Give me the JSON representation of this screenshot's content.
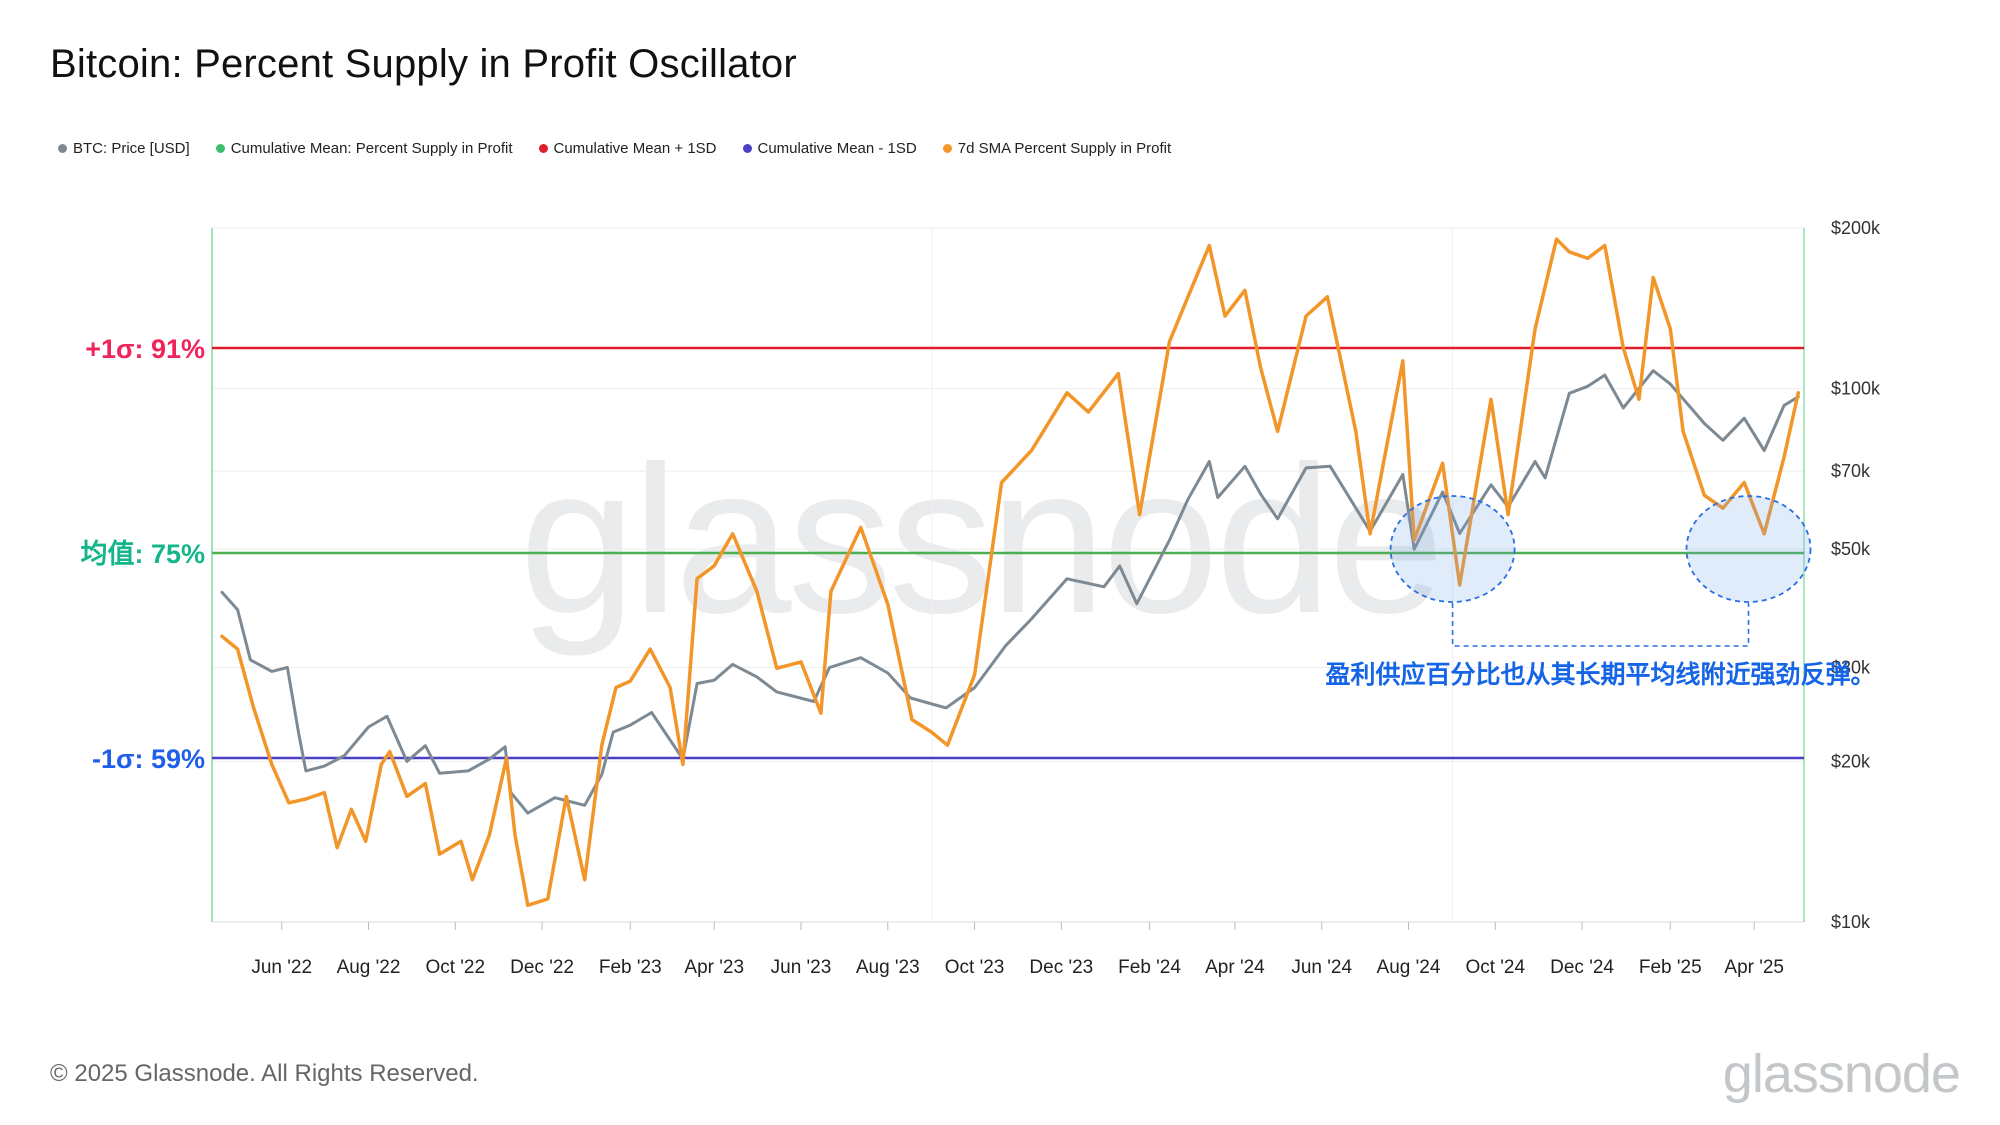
{
  "title": "Bitcoin: Percent Supply in Profit Oscillator",
  "footer": {
    "copyright": "© 2025 Glassnode. All Rights Reserved.",
    "logo": "glassnode"
  },
  "watermark": "glassnode",
  "legend": [
    {
      "label": "BTC: Price [USD]",
      "color": "#7d8a93"
    },
    {
      "label": "Cumulative Mean: Percent Supply in Profit",
      "color": "#3bbf6d"
    },
    {
      "label": "Cumulative Mean + 1SD",
      "color": "#e01e2b"
    },
    {
      "label": "Cumulative Mean - 1SD",
      "color": "#4b3fc4"
    },
    {
      "label": "7d SMA Percent Supply in Profit",
      "color": "#f3962a"
    }
  ],
  "chart_data": {
    "type": "line",
    "x_range": [
      "2022-04",
      "2025-05"
    ],
    "x_ticks": [
      "Jun '22",
      "Aug '22",
      "Oct '22",
      "Dec '22",
      "Feb '23",
      "Apr '23",
      "Jun '23",
      "Aug '23",
      "Oct '23",
      "Dec '23",
      "Feb '24",
      "Apr '24",
      "Jun '24",
      "Aug '24",
      "Oct '24",
      "Dec '24",
      "Feb '25",
      "Apr '25"
    ],
    "right_axis": {
      "scale": "log",
      "ylim": [
        10000,
        200000
      ],
      "ticks": [
        {
          "value": 200000,
          "label": "$200k"
        },
        {
          "value": 100000,
          "label": "$100k"
        },
        {
          "value": 70000,
          "label": "$70k"
        },
        {
          "value": 50000,
          "label": "$50k"
        },
        {
          "value": 30000,
          "label": "$30k"
        },
        {
          "value": 20000,
          "label": "$20k"
        },
        {
          "value": 10000,
          "label": "$10k"
        }
      ]
    },
    "left_axis": {
      "ylim": [
        47,
        100
      ],
      "reference_lines": [
        {
          "value": 91,
          "label": "+1σ: 91%",
          "label_color": "#f0245b",
          "line_color": "#e01e2b"
        },
        {
          "value": 75,
          "label": "均值: 75%",
          "label_color": "#14b58a",
          "line_color": "#4caf50"
        },
        {
          "value": 59,
          "label": "-1σ: 59%",
          "label_color": "#1f5ee8",
          "line_color": "#4b3fc4"
        }
      ]
    },
    "series": [
      {
        "name": "BTC: Price [USD]",
        "color": "#7d8a93",
        "axis": "right",
        "points": [
          {
            "x": "2022-04-20",
            "y": 41500
          },
          {
            "x": "2022-05-01",
            "y": 38500
          },
          {
            "x": "2022-05-10",
            "y": 31000
          },
          {
            "x": "2022-05-25",
            "y": 29500
          },
          {
            "x": "2022-06-05",
            "y": 30000
          },
          {
            "x": "2022-06-13",
            "y": 22500
          },
          {
            "x": "2022-06-18",
            "y": 19200
          },
          {
            "x": "2022-07-01",
            "y": 19600
          },
          {
            "x": "2022-07-15",
            "y": 20500
          },
          {
            "x": "2022-08-01",
            "y": 23200
          },
          {
            "x": "2022-08-14",
            "y": 24300
          },
          {
            "x": "2022-08-28",
            "y": 20000
          },
          {
            "x": "2022-09-10",
            "y": 21400
          },
          {
            "x": "2022-09-20",
            "y": 19000
          },
          {
            "x": "2022-10-10",
            "y": 19200
          },
          {
            "x": "2022-10-25",
            "y": 20200
          },
          {
            "x": "2022-11-05",
            "y": 21300
          },
          {
            "x": "2022-11-09",
            "y": 17500
          },
          {
            "x": "2022-11-21",
            "y": 16000
          },
          {
            "x": "2022-12-10",
            "y": 17100
          },
          {
            "x": "2022-12-31",
            "y": 16550
          },
          {
            "x": "2023-01-12",
            "y": 18900
          },
          {
            "x": "2023-01-20",
            "y": 22700
          },
          {
            "x": "2023-02-01",
            "y": 23400
          },
          {
            "x": "2023-02-16",
            "y": 24700
          },
          {
            "x": "2023-03-10",
            "y": 20200
          },
          {
            "x": "2023-03-20",
            "y": 28000
          },
          {
            "x": "2023-04-01",
            "y": 28400
          },
          {
            "x": "2023-04-14",
            "y": 30400
          },
          {
            "x": "2023-05-01",
            "y": 28800
          },
          {
            "x": "2023-05-15",
            "y": 27000
          },
          {
            "x": "2023-06-10",
            "y": 25900
          },
          {
            "x": "2023-06-21",
            "y": 30000
          },
          {
            "x": "2023-07-13",
            "y": 31300
          },
          {
            "x": "2023-08-01",
            "y": 29300
          },
          {
            "x": "2023-08-17",
            "y": 26300
          },
          {
            "x": "2023-09-11",
            "y": 25200
          },
          {
            "x": "2023-10-01",
            "y": 27500
          },
          {
            "x": "2023-10-23",
            "y": 33000
          },
          {
            "x": "2023-11-10",
            "y": 37000
          },
          {
            "x": "2023-12-05",
            "y": 44000
          },
          {
            "x": "2023-12-31",
            "y": 42500
          },
          {
            "x": "2024-01-11",
            "y": 46500
          },
          {
            "x": "2024-01-23",
            "y": 39500
          },
          {
            "x": "2024-02-15",
            "y": 52000
          },
          {
            "x": "2024-02-28",
            "y": 62000
          },
          {
            "x": "2024-03-14",
            "y": 73000
          },
          {
            "x": "2024-03-20",
            "y": 62500
          },
          {
            "x": "2024-04-08",
            "y": 71500
          },
          {
            "x": "2024-04-19",
            "y": 63500
          },
          {
            "x": "2024-05-01",
            "y": 57000
          },
          {
            "x": "2024-05-21",
            "y": 71000
          },
          {
            "x": "2024-06-07",
            "y": 71500
          },
          {
            "x": "2024-07-05",
            "y": 54000
          },
          {
            "x": "2024-07-28",
            "y": 69000
          },
          {
            "x": "2024-08-05",
            "y": 50000
          },
          {
            "x": "2024-08-25",
            "y": 64000
          },
          {
            "x": "2024-09-06",
            "y": 53500
          },
          {
            "x": "2024-09-28",
            "y": 66000
          },
          {
            "x": "2024-10-10",
            "y": 60000
          },
          {
            "x": "2024-10-29",
            "y": 73000
          },
          {
            "x": "2024-11-05",
            "y": 68000
          },
          {
            "x": "2024-11-22",
            "y": 98000
          },
          {
            "x": "2024-12-05",
            "y": 101000
          },
          {
            "x": "2024-12-17",
            "y": 106000
          },
          {
            "x": "2024-12-30",
            "y": 92000
          },
          {
            "x": "2025-01-20",
            "y": 108000
          },
          {
            "x": "2025-02-01",
            "y": 102000
          },
          {
            "x": "2025-02-25",
            "y": 86000
          },
          {
            "x": "2025-03-10",
            "y": 80000
          },
          {
            "x": "2025-03-25",
            "y": 88000
          },
          {
            "x": "2025-04-08",
            "y": 76500
          },
          {
            "x": "2025-04-22",
            "y": 93000
          },
          {
            "x": "2025-05-02",
            "y": 96500
          }
        ]
      },
      {
        "name": "7d SMA Percent Supply in Profit",
        "color": "#f3962a",
        "axis": "left",
        "points": [
          {
            "x": "2022-04-20",
            "y": 68.5
          },
          {
            "x": "2022-05-01",
            "y": 67.5
          },
          {
            "x": "2022-05-12",
            "y": 63.0
          },
          {
            "x": "2022-05-25",
            "y": 58.5
          },
          {
            "x": "2022-06-06",
            "y": 55.5
          },
          {
            "x": "2022-06-18",
            "y": 55.8
          },
          {
            "x": "2022-07-01",
            "y": 56.3
          },
          {
            "x": "2022-07-10",
            "y": 52.0
          },
          {
            "x": "2022-07-20",
            "y": 55.0
          },
          {
            "x": "2022-07-30",
            "y": 52.5
          },
          {
            "x": "2022-08-10",
            "y": 58.5
          },
          {
            "x": "2022-08-16",
            "y": 59.5
          },
          {
            "x": "2022-08-28",
            "y": 56.0
          },
          {
            "x": "2022-09-10",
            "y": 57.0
          },
          {
            "x": "2022-09-20",
            "y": 51.5
          },
          {
            "x": "2022-10-05",
            "y": 52.5
          },
          {
            "x": "2022-10-13",
            "y": 49.5
          },
          {
            "x": "2022-10-25",
            "y": 53.0
          },
          {
            "x": "2022-11-06",
            "y": 59.0
          },
          {
            "x": "2022-11-12",
            "y": 53.0
          },
          {
            "x": "2022-11-21",
            "y": 47.5
          },
          {
            "x": "2022-12-05",
            "y": 48.0
          },
          {
            "x": "2022-12-18",
            "y": 56.0
          },
          {
            "x": "2022-12-31",
            "y": 49.5
          },
          {
            "x": "2023-01-12",
            "y": 60.0
          },
          {
            "x": "2023-01-22",
            "y": 64.5
          },
          {
            "x": "2023-02-01",
            "y": 65.0
          },
          {
            "x": "2023-02-15",
            "y": 67.5
          },
          {
            "x": "2023-03-01",
            "y": 64.5
          },
          {
            "x": "2023-03-10",
            "y": 58.5
          },
          {
            "x": "2023-03-20",
            "y": 73.0
          },
          {
            "x": "2023-04-01",
            "y": 74.0
          },
          {
            "x": "2023-04-14",
            "y": 76.5
          },
          {
            "x": "2023-05-01",
            "y": 72.0
          },
          {
            "x": "2023-05-15",
            "y": 66.0
          },
          {
            "x": "2023-06-01",
            "y": 66.5
          },
          {
            "x": "2023-06-15",
            "y": 62.5
          },
          {
            "x": "2023-06-22",
            "y": 72.0
          },
          {
            "x": "2023-07-13",
            "y": 77.0
          },
          {
            "x": "2023-08-01",
            "y": 71.0
          },
          {
            "x": "2023-08-18",
            "y": 62.0
          },
          {
            "x": "2023-09-01",
            "y": 61.0
          },
          {
            "x": "2023-09-12",
            "y": 60.0
          },
          {
            "x": "2023-10-01",
            "y": 65.5
          },
          {
            "x": "2023-10-20",
            "y": 80.5
          },
          {
            "x": "2023-11-10",
            "y": 83.0
          },
          {
            "x": "2023-12-05",
            "y": 87.5
          },
          {
            "x": "2023-12-20",
            "y": 86.0
          },
          {
            "x": "2024-01-10",
            "y": 89.0
          },
          {
            "x": "2024-01-25",
            "y": 78.0
          },
          {
            "x": "2024-02-15",
            "y": 91.5
          },
          {
            "x": "2024-02-28",
            "y": 95.0
          },
          {
            "x": "2024-03-14",
            "y": 99.0
          },
          {
            "x": "2024-03-25",
            "y": 93.5
          },
          {
            "x": "2024-04-08",
            "y": 95.5
          },
          {
            "x": "2024-04-19",
            "y": 89.5
          },
          {
            "x": "2024-05-01",
            "y": 84.5
          },
          {
            "x": "2024-05-21",
            "y": 93.5
          },
          {
            "x": "2024-06-05",
            "y": 95.0
          },
          {
            "x": "2024-06-25",
            "y": 84.5
          },
          {
            "x": "2024-07-05",
            "y": 76.5
          },
          {
            "x": "2024-07-28",
            "y": 90.0
          },
          {
            "x": "2024-08-05",
            "y": 76.0
          },
          {
            "x": "2024-08-25",
            "y": 82.0
          },
          {
            "x": "2024-09-06",
            "y": 72.5
          },
          {
            "x": "2024-09-28",
            "y": 87.0
          },
          {
            "x": "2024-10-10",
            "y": 78.0
          },
          {
            "x": "2024-10-29",
            "y": 92.5
          },
          {
            "x": "2024-11-13",
            "y": 99.5
          },
          {
            "x": "2024-11-22",
            "y": 98.5
          },
          {
            "x": "2024-12-05",
            "y": 98.0
          },
          {
            "x": "2024-12-17",
            "y": 99.0
          },
          {
            "x": "2024-12-30",
            "y": 91.0
          },
          {
            "x": "2025-01-10",
            "y": 87.0
          },
          {
            "x": "2025-01-20",
            "y": 96.5
          },
          {
            "x": "2025-02-01",
            "y": 92.5
          },
          {
            "x": "2025-02-10",
            "y": 84.5
          },
          {
            "x": "2025-02-25",
            "y": 79.5
          },
          {
            "x": "2025-03-10",
            "y": 78.5
          },
          {
            "x": "2025-03-25",
            "y": 80.5
          },
          {
            "x": "2025-04-08",
            "y": 76.5
          },
          {
            "x": "2025-04-22",
            "y": 82.5
          },
          {
            "x": "2025-05-02",
            "y": 87.5
          }
        ]
      }
    ],
    "annotation": {
      "text": "盈利供应百分比也从其长期平均线附近强劲反弹。",
      "color": "#1565e6",
      "highlight_regions": [
        {
          "center_x": "2024-09-01",
          "center_y": 75.0
        },
        {
          "center_x": "2025-03-28",
          "center_y": 75.0
        }
      ]
    }
  }
}
